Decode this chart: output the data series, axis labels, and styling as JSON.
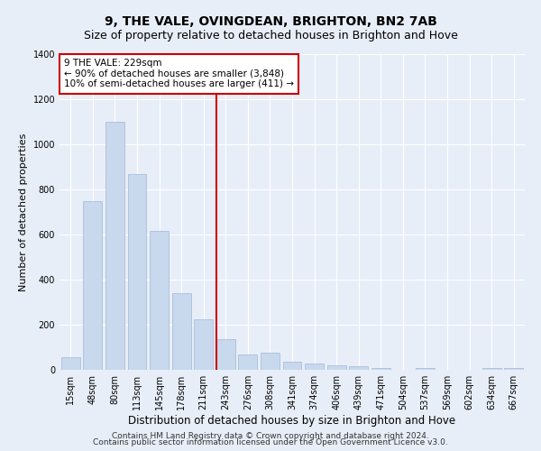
{
  "title": "9, THE VALE, OVINGDEAN, BRIGHTON, BN2 7AB",
  "subtitle": "Size of property relative to detached houses in Brighton and Hove",
  "xlabel": "Distribution of detached houses by size in Brighton and Hove",
  "ylabel": "Number of detached properties",
  "footer_line1": "Contains HM Land Registry data © Crown copyright and database right 2024.",
  "footer_line2": "Contains public sector information licensed under the Open Government Licence v3.0.",
  "categories": [
    "15sqm",
    "48sqm",
    "80sqm",
    "113sqm",
    "145sqm",
    "178sqm",
    "211sqm",
    "243sqm",
    "276sqm",
    "308sqm",
    "341sqm",
    "374sqm",
    "406sqm",
    "439sqm",
    "471sqm",
    "504sqm",
    "537sqm",
    "569sqm",
    "602sqm",
    "634sqm",
    "667sqm"
  ],
  "values": [
    55,
    750,
    1100,
    870,
    615,
    340,
    225,
    135,
    70,
    75,
    35,
    30,
    20,
    15,
    10,
    0,
    10,
    0,
    0,
    10,
    10
  ],
  "bar_color": "#c8d8ed",
  "bar_edge_color": "#a0b8d8",
  "bg_color": "#e8eef8",
  "grid_color": "#ffffff",
  "annotation_line1": "9 THE VALE: 229sqm",
  "annotation_line2": "← 90% of detached houses are smaller (3,848)",
  "annotation_line3": "10% of semi-detached houses are larger (411) →",
  "annotation_box_color": "#ffffff",
  "annotation_box_edge": "#cc0000",
  "vline_color": "#cc0000",
  "ylim": [
    0,
    1400
  ],
  "yticks": [
    0,
    200,
    400,
    600,
    800,
    1000,
    1200,
    1400
  ],
  "title_fontsize": 10,
  "subtitle_fontsize": 9,
  "xlabel_fontsize": 8.5,
  "ylabel_fontsize": 8,
  "tick_fontsize": 7,
  "annotation_fontsize": 7.5,
  "footer_fontsize": 6.5
}
